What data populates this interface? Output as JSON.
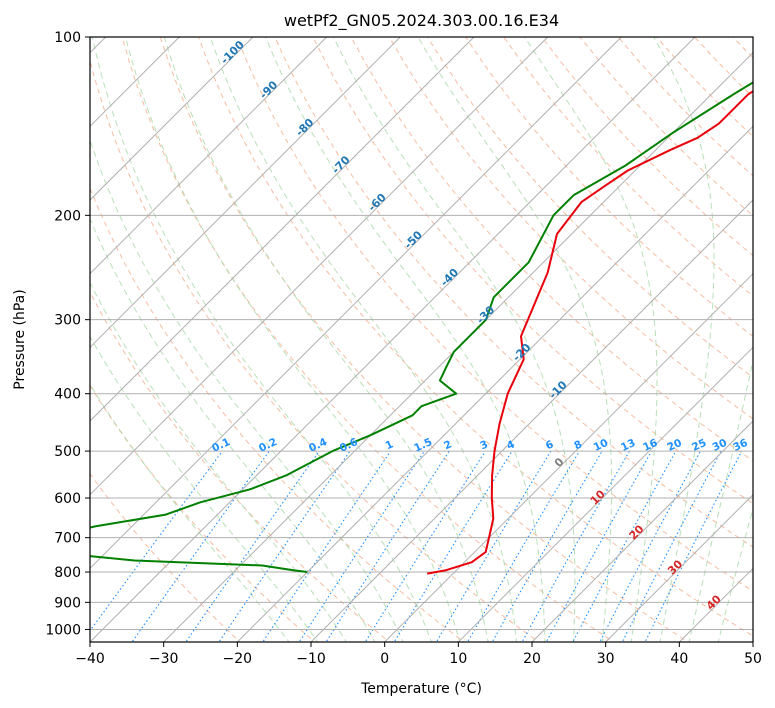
{
  "chart_data": {
    "type": "skew-t",
    "title": "wetPf2_GN05.2024.303.00.16.E34",
    "xlabel": "Temperature (°C)",
    "ylabel": "Pressure (hPa)",
    "xlim": [
      -40,
      50
    ],
    "ylim_hpa": [
      1050,
      100
    ],
    "grid": true,
    "x_ticks": [
      -40,
      -30,
      -20,
      -10,
      0,
      10,
      20,
      30,
      40,
      50
    ],
    "y_ticks": [
      100,
      200,
      300,
      400,
      500,
      600,
      700,
      800,
      900,
      1000
    ],
    "colors": {
      "temperature": "#e8000b",
      "dewpoint": "#008000",
      "isotherm": "#b0b0b0",
      "dry_adiabat": "#f4a582",
      "moist_adiabat": "#a6d8a6",
      "mixing_ratio": "#1e90ff",
      "label_blue": "#1f77b4",
      "label_red": "#d62728"
    },
    "series": [
      {
        "name": "Temperature",
        "points": [
          [
            -19,
            100
          ],
          [
            -23,
            113
          ],
          [
            -25,
            125
          ],
          [
            -25,
            140
          ],
          [
            -26,
            148
          ],
          [
            -28,
            155
          ],
          [
            -31,
            168
          ],
          [
            -32,
            178
          ],
          [
            -33,
            190
          ],
          [
            -32,
            215
          ],
          [
            -28,
            250
          ],
          [
            -25,
            290
          ],
          [
            -23,
            320
          ],
          [
            -19.5,
            350
          ],
          [
            -17,
            400
          ],
          [
            -14,
            450
          ],
          [
            -11,
            500
          ],
          [
            -8,
            550
          ],
          [
            -5,
            600
          ],
          [
            -2,
            650
          ],
          [
            0,
            700
          ],
          [
            1.5,
            740
          ],
          [
            1,
            770
          ],
          [
            -1.5,
            795
          ],
          [
            -3.5,
            805
          ]
        ]
      },
      {
        "name": "Dewpoint",
        "points": [
          [
            -22,
            100
          ],
          [
            -27,
            125
          ],
          [
            -30,
            145
          ],
          [
            -32,
            165
          ],
          [
            -35,
            185
          ],
          [
            -35,
            200
          ],
          [
            -32,
            240
          ],
          [
            -32,
            275
          ],
          [
            -30,
            300
          ],
          [
            -30,
            340
          ],
          [
            -29,
            360
          ],
          [
            -28,
            380
          ],
          [
            -24,
            400
          ],
          [
            -27,
            420
          ],
          [
            -27,
            435
          ],
          [
            -30,
            470
          ],
          [
            -33,
            500
          ],
          [
            -36,
            550
          ],
          [
            -39,
            580
          ],
          [
            -44,
            610
          ],
          [
            -47,
            640
          ],
          [
            -55,
            670
          ],
          [
            -60,
            700
          ],
          [
            -58,
            740
          ],
          [
            -45,
            765
          ],
          [
            -27,
            780
          ],
          [
            -22,
            795
          ],
          [
            -20,
            800
          ]
        ]
      }
    ],
    "isotherm_label_values": [
      -100,
      -90,
      -80,
      -70,
      -60,
      -50,
      -40,
      -30,
      -20,
      -10
    ],
    "isotherm_labels_high": [
      "-100",
      "-90",
      "-80",
      "-70",
      "-60",
      "-50",
      "-40",
      "-30",
      "-20",
      "-10"
    ],
    "mixing_ratio_values": [
      0.1,
      0.2,
      0.4,
      0.6,
      1,
      1.5,
      2,
      3,
      4,
      6,
      8,
      10,
      13,
      16,
      20,
      25,
      30,
      36
    ],
    "mixing_ratio_labels": [
      "0.1",
      "0.2",
      "0.4",
      "0.6",
      "1",
      "1.5",
      "2",
      "3",
      "4",
      "6",
      "8",
      "10",
      "13",
      "16",
      "20",
      "25",
      "30",
      "36"
    ],
    "lower_isotherm_values": [
      0,
      10,
      20,
      30,
      40
    ],
    "lower_isotherm_labels": [
      "0",
      "10",
      "20",
      "30",
      "40"
    ]
  }
}
